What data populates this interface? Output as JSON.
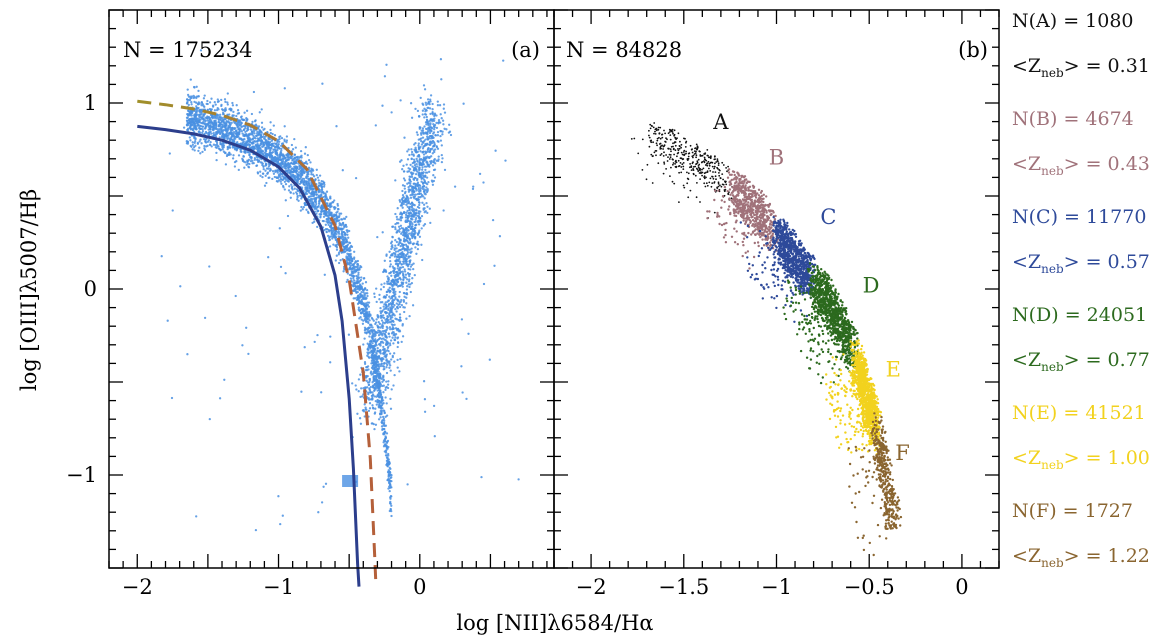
{
  "chart_data": [
    {
      "type": "scatter",
      "panel_label": "(a)",
      "n_label": "N = 175234",
      "xlabel": "log [NII]λ6584/Hα",
      "ylabel": "log [OIII]λ5007/Hβ",
      "xlim": [
        -2.2,
        0.95
      ],
      "ylim": [
        -1.5,
        1.5
      ],
      "xtick_labels": [
        "−2",
        "−1",
        "0"
      ],
      "xticks": [
        -2,
        -1,
        0
      ],
      "ytick_labels": [
        "−1",
        "0",
        "1"
      ],
      "yticks": [
        -1,
        0,
        1
      ],
      "point_color": "#4a90e2",
      "series": [
        {
          "style": "solid",
          "color": "#2c3e8c",
          "points": [
            [
              -2.0,
              0.874
            ],
            [
              -1.8,
              0.857
            ],
            [
              -1.6,
              0.834
            ],
            [
              -1.4,
              0.8
            ],
            [
              -1.2,
              0.746
            ],
            [
              -1.0,
              0.657
            ],
            [
              -0.85,
              0.542
            ],
            [
              -0.7,
              0.335
            ],
            [
              -0.6,
              0.074
            ],
            [
              -0.55,
              -0.172
            ],
            [
              -0.5,
              -0.59
            ],
            [
              -0.47,
              -0.965
            ],
            [
              -0.44,
              -1.477
            ],
            [
              -0.43,
              -1.71
            ]
          ]
        },
        {
          "style": "dashed",
          "color": "#b5603a",
          "color_start": "#a0902a",
          "points": [
            [
              -2.0,
              1.009
            ],
            [
              -1.8,
              0.991
            ],
            [
              -1.6,
              0.968
            ],
            [
              -1.4,
              0.934
            ],
            [
              -1.2,
              0.881
            ],
            [
              -1.0,
              0.795
            ],
            [
              -0.8,
              0.645
            ],
            [
              -0.6,
              0.341
            ],
            [
              -0.5,
              0.05
            ],
            [
              -0.4,
              -0.452
            ],
            [
              -0.35,
              -0.913
            ],
            [
              -0.32,
              -1.425
            ],
            [
              -0.31,
              -1.719
            ]
          ]
        }
      ]
    },
    {
      "type": "scatter",
      "panel_label": "(b)",
      "n_label": "N = 84828",
      "xlabel": "log [NII]λ6584/Hα",
      "xlim": [
        -2.2,
        0.2
      ],
      "ylim": [
        -1.5,
        1.5
      ],
      "xtick_labels": [
        "−2",
        "−1.5",
        "−1",
        "−0.5",
        "0"
      ],
      "xticks": [
        -2,
        -1.5,
        -1,
        -0.5,
        0
      ],
      "series": [
        {
          "name": "A",
          "color": "#111111",
          "x_range": [
            -1.65,
            -1.2
          ],
          "label_pos": [
            -1.3,
            0.86
          ],
          "n": "N(A) = 1080",
          "z_prefix": "<Z",
          "z_sub": "neb",
          "z_suffix": "> = 0.31"
        },
        {
          "name": "B",
          "color": "#a0727a",
          "x_range": [
            -1.2,
            -0.97
          ],
          "label_pos": [
            -1.0,
            0.67
          ],
          "n": "N(B) = 4674",
          "z_prefix": "<Z",
          "z_sub": "neb",
          "z_suffix": "> = 0.43"
        },
        {
          "name": "C",
          "color": "#2e4a9a",
          "x_range": [
            -0.97,
            -0.77
          ],
          "label_pos": [
            -0.72,
            0.35
          ],
          "n": "N(C) = 11770",
          "z_prefix": "<Z",
          "z_sub": "neb",
          "z_suffix": "> = 0.57"
        },
        {
          "name": "D",
          "color": "#2c6a1e",
          "x_range": [
            -0.77,
            -0.54
          ],
          "label_pos": [
            -0.49,
            -0.02
          ],
          "n": "N(D) = 24051",
          "z_prefix": "<Z",
          "z_sub": "neb",
          "z_suffix": "> = 0.77"
        },
        {
          "name": "E",
          "color": "#f2d21e",
          "x_range": [
            -0.54,
            -0.43
          ],
          "label_pos": [
            -0.37,
            -0.47
          ],
          "n": "N(E) = 41521",
          "z_prefix": "<Z",
          "z_sub": "neb",
          "z_suffix": "> = 1.00"
        },
        {
          "name": "F",
          "color": "#8a6530",
          "x_range": [
            -0.43,
            -0.33
          ],
          "label_pos": [
            -0.32,
            -0.92
          ],
          "n": "N(F) = 1727",
          "z_prefix": "<Z",
          "z_sub": "neb",
          "z_suffix": "> = 1.22"
        }
      ]
    }
  ]
}
